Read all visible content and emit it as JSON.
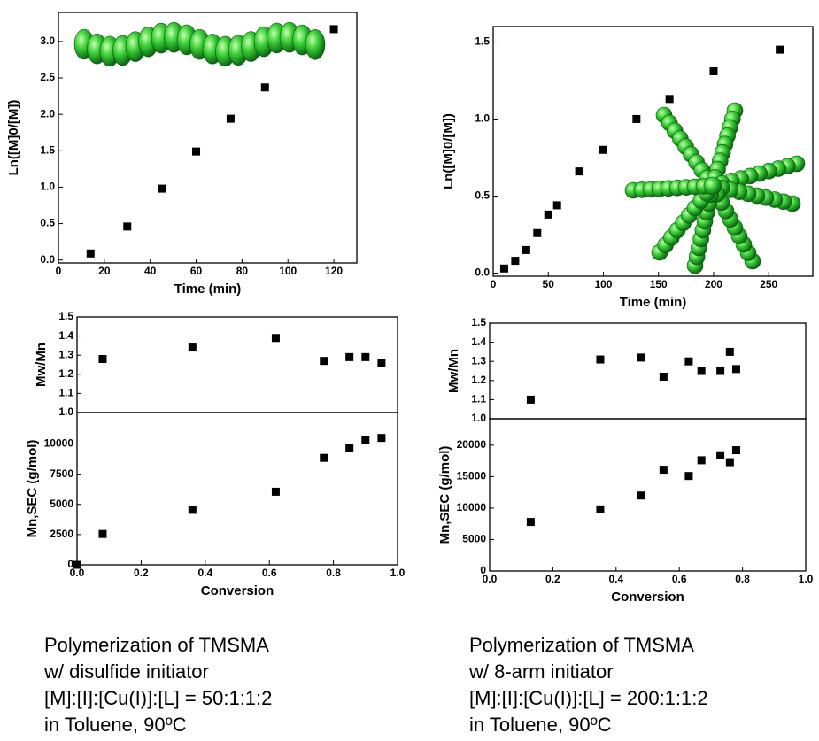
{
  "chart_data": [
    {
      "type": "scatter",
      "xlabel": "Time (min)",
      "ylabel": "Ln([M]0/[M])",
      "x": [
        14,
        30,
        45,
        60,
        75,
        90,
        120
      ],
      "values": [
        0.09,
        0.46,
        0.98,
        1.49,
        1.94,
        2.37,
        3.17
      ],
      "color": "#000000",
      "xlim": [
        0,
        130
      ],
      "ylim": [
        -0.04,
        3.4
      ],
      "xticks": [
        0,
        20,
        40,
        60,
        80,
        100,
        120
      ],
      "yticks": [
        {
          "value": 0,
          "label": "0.0"
        },
        0.5,
        {
          "value": 1,
          "label": "1.0"
        },
        1.5,
        {
          "value": 2,
          "label": "2.0"
        },
        2.5,
        {
          "value": 3,
          "label": "3.0"
        }
      ]
    },
    {
      "type": "scatter",
      "xlabel": "Time (min)",
      "ylabel": "Ln([M]0/[M])",
      "x": [
        10,
        20,
        30,
        40,
        50,
        58,
        78,
        100,
        130,
        160,
        200,
        260
      ],
      "values": [
        0.03,
        0.08,
        0.15,
        0.26,
        0.38,
        0.44,
        0.66,
        0.8,
        1.0,
        1.13,
        1.31,
        1.45
      ],
      "color": "#000000",
      "xlim": [
        0,
        290
      ],
      "ylim": [
        -0.02,
        1.6
      ],
      "xticks": [
        0,
        50,
        100,
        150,
        200,
        250
      ],
      "yticks": [
        {
          "value": 0,
          "label": "0.0"
        },
        0.5,
        {
          "value": 1,
          "label": "1.0"
        },
        1.5
      ]
    },
    {
      "type": "scatter",
      "ylabel": "Mw/Mn",
      "x": [
        0.08,
        0.36,
        0.62,
        0.77,
        0.85,
        0.9,
        0.95
      ],
      "values": [
        1.28,
        1.34,
        1.39,
        1.27,
        1.29,
        1.29,
        1.26
      ],
      "color": "#000000",
      "xlim": [
        0,
        1
      ],
      "ylim": [
        1,
        1.5
      ],
      "yticks": [
        {
          "value": 1,
          "label": "1.0"
        },
        1.1,
        1.2,
        1.3,
        1.4,
        1.5
      ]
    },
    {
      "type": "scatter",
      "xlabel": "Conversion",
      "ylabel": "Mn,SEC (g/mol)",
      "x": [
        0,
        0.08,
        0.36,
        0.62,
        0.77,
        0.85,
        0.9,
        0.95
      ],
      "values": [
        0,
        2550,
        4550,
        6050,
        8850,
        9650,
        10300,
        10500
      ],
      "color": "#000000",
      "xlim": [
        0,
        1
      ],
      "ylim": [
        0,
        12600
      ],
      "xticks": [
        {
          "value": 0,
          "label": "0.0"
        },
        0.2,
        0.4,
        0.6,
        0.8,
        {
          "value": 1,
          "label": "1.0"
        }
      ],
      "yticks": [
        0,
        2500,
        5000,
        7500,
        10000
      ]
    },
    {
      "type": "scatter",
      "ylabel": "Mw/Mn",
      "x": [
        0.13,
        0.35,
        0.48,
        0.55,
        0.63,
        0.67,
        0.73,
        0.76,
        0.78
      ],
      "values": [
        1.1,
        1.31,
        1.32,
        1.22,
        1.3,
        1.25,
        1.25,
        1.35,
        1.26
      ],
      "color": "#000000",
      "xlim": [
        0,
        1
      ],
      "ylim": [
        1,
        1.5
      ],
      "yticks": [
        {
          "value": 1,
          "label": "1.0"
        },
        1.1,
        1.2,
        1.3,
        1.4,
        1.5
      ]
    },
    {
      "type": "scatter",
      "xlabel": "Conversion",
      "ylabel": "Mn,SEC (g/mol)",
      "x": [
        0.13,
        0.35,
        0.48,
        0.55,
        0.63,
        0.67,
        0.73,
        0.76,
        0.78
      ],
      "values": [
        7800,
        9800,
        12000,
        16100,
        15100,
        17600,
        18400,
        17300,
        19200
      ],
      "color": "#000000",
      "xlim": [
        0,
        1
      ],
      "ylim": [
        0,
        24200
      ],
      "xticks": [
        {
          "value": 0,
          "label": "0.0"
        },
        0.2,
        0.4,
        0.6,
        0.8,
        {
          "value": 1,
          "label": "1.0"
        }
      ],
      "yticks": [
        0,
        5000,
        10000,
        15000,
        20000
      ]
    }
  ],
  "captions": [
    [
      "Polymerization  of TMSMA",
      "w/ disulfide initiator",
      "[M]:[I]:[Cu(I)]:[L] = 50:1:1:2",
      "in Toluene, 90ºC"
    ],
    [
      "Polymerization of TMSMA",
      "w/ 8-arm initiator",
      "[M]:[I]:[Cu(I)]:[L] = 200:1:1:2",
      "in Toluene, 90ºC"
    ]
  ]
}
